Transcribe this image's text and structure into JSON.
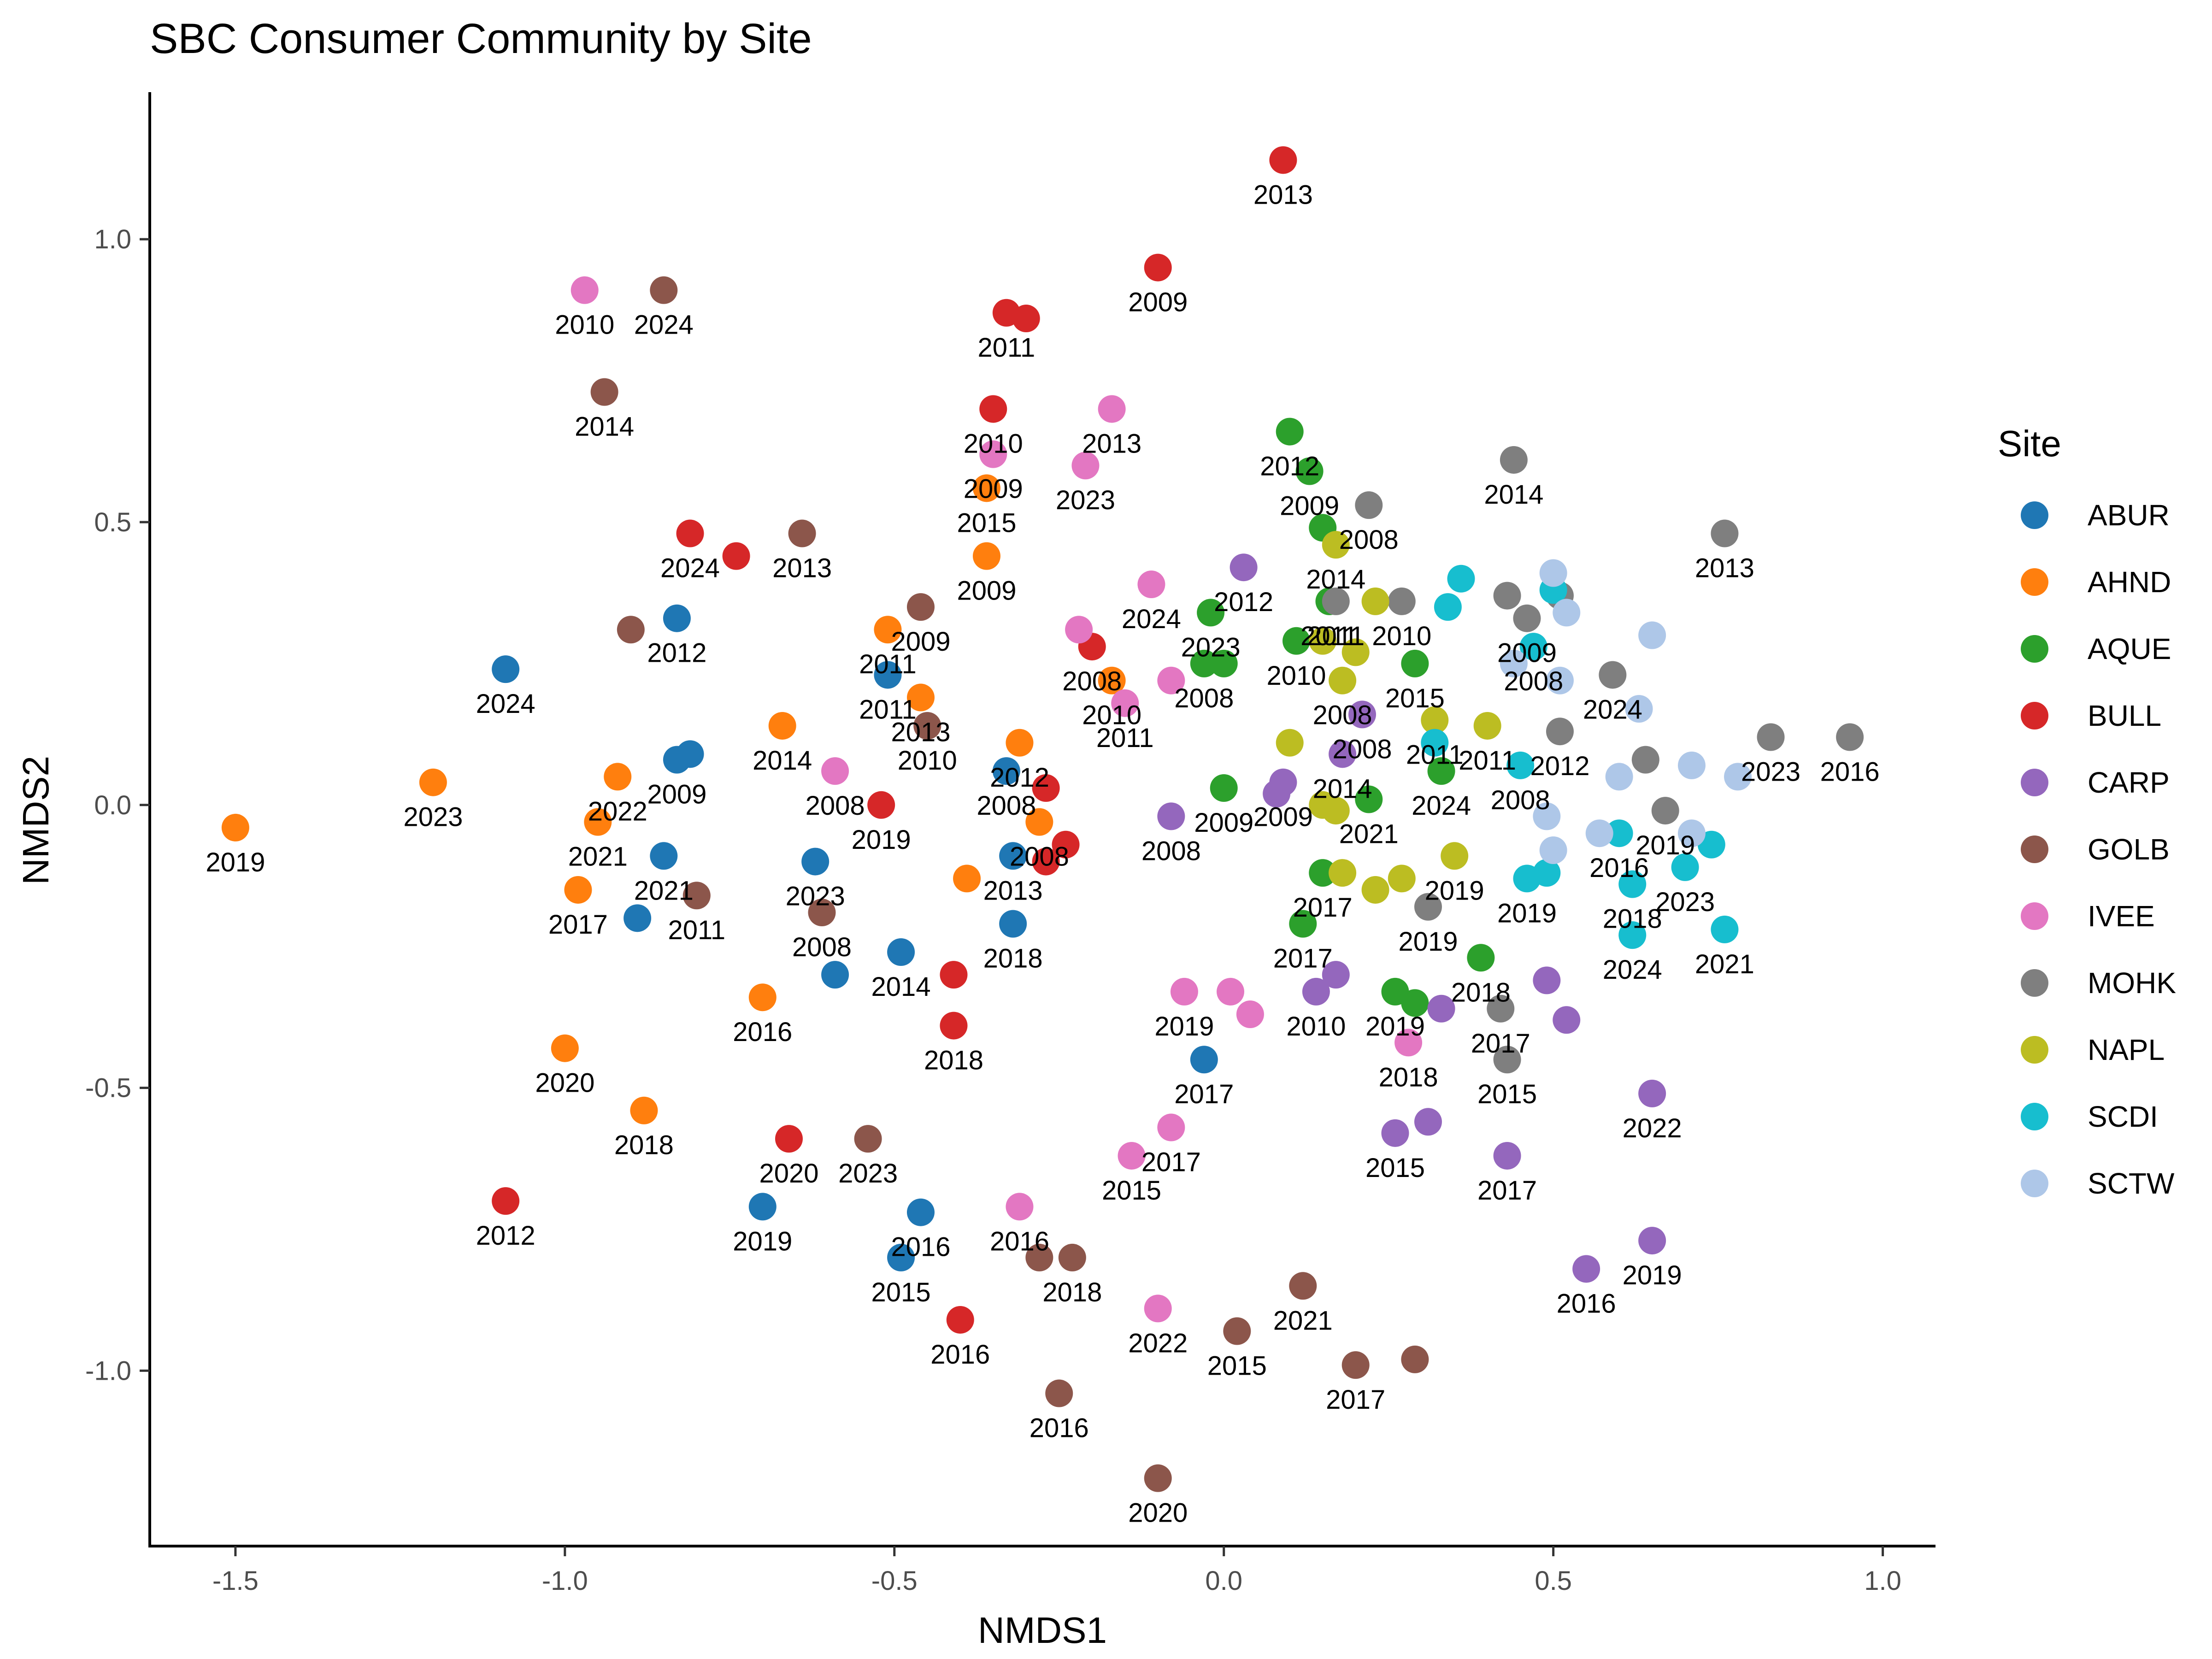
{
  "chart_data": {
    "type": "scatter",
    "title": "SBC Consumer Community by Site",
    "xlabel": "NMDS1",
    "ylabel": "NMDS2",
    "xlim": [
      -1.63,
      1.08
    ],
    "ylim": [
      -1.31,
      1.26
    ],
    "xticks": [
      -1.5,
      -1.0,
      -0.5,
      0.0,
      0.5,
      1.0
    ],
    "xtick_labels": [
      "-1.5",
      "-1.0",
      "-0.5",
      "0.0",
      "0.5",
      "1.0"
    ],
    "yticks": [
      -1.0,
      -0.5,
      0.0,
      0.5,
      1.0
    ],
    "ytick_labels": [
      "-1.0",
      "-0.5",
      "0.0",
      "0.5",
      "1.0"
    ],
    "grid": false,
    "legend": {
      "title": "Site",
      "placement": "right"
    },
    "series": [
      {
        "name": "ABUR",
        "color": "#1f77b4",
        "points": [
          {
            "x": -1.09,
            "y": 0.24,
            "label": "2024"
          },
          {
            "x": -0.83,
            "y": 0.33,
            "label": "2012"
          },
          {
            "x": -0.83,
            "y": 0.08,
            "label": "2009"
          },
          {
            "x": -0.81,
            "y": 0.09,
            "label": ""
          },
          {
            "x": -0.85,
            "y": -0.09,
            "label": "2021"
          },
          {
            "x": -0.89,
            "y": -0.2,
            "label": ""
          },
          {
            "x": -0.62,
            "y": -0.1,
            "label": "2023"
          },
          {
            "x": -0.59,
            "y": -0.3,
            "label": ""
          },
          {
            "x": -0.49,
            "y": -0.26,
            "label": "2014"
          },
          {
            "x": -0.51,
            "y": 0.23,
            "label": "2011"
          },
          {
            "x": -0.33,
            "y": 0.06,
            "label": "2008"
          },
          {
            "x": -0.32,
            "y": -0.09,
            "label": "2013"
          },
          {
            "x": -0.32,
            "y": -0.21,
            "label": "2018"
          },
          {
            "x": -0.03,
            "y": -0.45,
            "label": "2017"
          },
          {
            "x": -0.7,
            "y": -0.71,
            "label": "2019"
          },
          {
            "x": -0.46,
            "y": -0.72,
            "label": "2016"
          },
          {
            "x": -0.49,
            "y": -0.8,
            "label": "2015"
          }
        ]
      },
      {
        "name": "AHND",
        "color": "#ff7f0e",
        "points": [
          {
            "x": -1.5,
            "y": -0.04,
            "label": "2019"
          },
          {
            "x": -1.2,
            "y": 0.04,
            "label": "2023"
          },
          {
            "x": -0.92,
            "y": 0.05,
            "label": "2022"
          },
          {
            "x": -0.95,
            "y": -0.03,
            "label": "2021"
          },
          {
            "x": -0.98,
            "y": -0.15,
            "label": "2017"
          },
          {
            "x": -0.7,
            "y": -0.34,
            "label": "2016"
          },
          {
            "x": -1.0,
            "y": -0.43,
            "label": "2020"
          },
          {
            "x": -0.88,
            "y": -0.54,
            "label": "2018"
          },
          {
            "x": -0.67,
            "y": 0.14,
            "label": "2014"
          },
          {
            "x": -0.51,
            "y": 0.31,
            "label": "2011"
          },
          {
            "x": -0.46,
            "y": 0.19,
            "label": "2013"
          },
          {
            "x": -0.36,
            "y": 0.56,
            "label": "2015"
          },
          {
            "x": -0.36,
            "y": 0.44,
            "label": "2009"
          },
          {
            "x": -0.31,
            "y": 0.11,
            "label": "2012"
          },
          {
            "x": -0.28,
            "y": -0.03,
            "label": "2008"
          },
          {
            "x": -0.39,
            "y": -0.13,
            "label": ""
          },
          {
            "x": -0.17,
            "y": 0.22,
            "label": "2010"
          }
        ]
      },
      {
        "name": "AQUE",
        "color": "#2ca02c",
        "points": [
          {
            "x": 0.1,
            "y": 0.66,
            "label": "2012"
          },
          {
            "x": 0.13,
            "y": 0.59,
            "label": "2009"
          },
          {
            "x": 0.15,
            "y": 0.49,
            "label": ""
          },
          {
            "x": -0.02,
            "y": 0.34,
            "label": "2023"
          },
          {
            "x": -0.03,
            "y": 0.25,
            "label": "2008"
          },
          {
            "x": 0.0,
            "y": 0.25,
            "label": ""
          },
          {
            "x": 0.11,
            "y": 0.29,
            "label": "2010"
          },
          {
            "x": 0.16,
            "y": 0.36,
            "label": "2011"
          },
          {
            "x": 0.29,
            "y": 0.25,
            "label": "2015"
          },
          {
            "x": 0.0,
            "y": 0.03,
            "label": "2009"
          },
          {
            "x": 0.22,
            "y": 0.01,
            "label": "2021"
          },
          {
            "x": 0.33,
            "y": 0.06,
            "label": "2024"
          },
          {
            "x": 0.15,
            "y": -0.12,
            "label": "2017"
          },
          {
            "x": 0.12,
            "y": -0.21,
            "label": "2017"
          },
          {
            "x": 0.26,
            "y": -0.33,
            "label": "2019"
          },
          {
            "x": 0.29,
            "y": -0.35,
            "label": ""
          },
          {
            "x": 0.39,
            "y": -0.27,
            "label": "2018"
          }
        ]
      },
      {
        "name": "BULL",
        "color": "#d62728",
        "points": [
          {
            "x": 0.09,
            "y": 1.14,
            "label": "2013"
          },
          {
            "x": -0.1,
            "y": 0.95,
            "label": "2009"
          },
          {
            "x": -0.33,
            "y": 0.87,
            "label": "2011"
          },
          {
            "x": -0.3,
            "y": 0.86,
            "label": ""
          },
          {
            "x": -0.35,
            "y": 0.7,
            "label": "2010"
          },
          {
            "x": -0.81,
            "y": 0.48,
            "label": "2024"
          },
          {
            "x": -0.74,
            "y": 0.44,
            "label": ""
          },
          {
            "x": -0.2,
            "y": 0.28,
            "label": "2008"
          },
          {
            "x": -0.52,
            "y": 0.0,
            "label": "2019"
          },
          {
            "x": -0.27,
            "y": 0.03,
            "label": ""
          },
          {
            "x": -0.24,
            "y": -0.07,
            "label": ""
          },
          {
            "x": -0.27,
            "y": -0.1,
            "label": ""
          },
          {
            "x": -0.41,
            "y": -0.3,
            "label": ""
          },
          {
            "x": -0.41,
            "y": -0.39,
            "label": "2018"
          },
          {
            "x": -0.66,
            "y": -0.59,
            "label": "2020"
          },
          {
            "x": -1.09,
            "y": -0.7,
            "label": "2012"
          },
          {
            "x": -0.4,
            "y": -0.91,
            "label": "2016"
          }
        ]
      },
      {
        "name": "CARP",
        "color": "#9467bd",
        "points": [
          {
            "x": 0.03,
            "y": 0.42,
            "label": "2012"
          },
          {
            "x": 0.21,
            "y": 0.16,
            "label": "2008"
          },
          {
            "x": 0.18,
            "y": 0.09,
            "label": "2014"
          },
          {
            "x": 0.09,
            "y": 0.04,
            "label": "2009"
          },
          {
            "x": 0.08,
            "y": 0.02,
            "label": ""
          },
          {
            "x": -0.08,
            "y": -0.02,
            "label": "2008"
          },
          {
            "x": 0.14,
            "y": -0.33,
            "label": "2010"
          },
          {
            "x": 0.17,
            "y": -0.3,
            "label": ""
          },
          {
            "x": 0.33,
            "y": -0.36,
            "label": ""
          },
          {
            "x": 0.49,
            "y": -0.31,
            "label": ""
          },
          {
            "x": 0.52,
            "y": -0.38,
            "label": ""
          },
          {
            "x": 0.26,
            "y": -0.58,
            "label": "2015"
          },
          {
            "x": 0.31,
            "y": -0.56,
            "label": ""
          },
          {
            "x": 0.43,
            "y": -0.62,
            "label": "2017"
          },
          {
            "x": 0.65,
            "y": -0.51,
            "label": "2022"
          },
          {
            "x": 0.55,
            "y": -0.82,
            "label": "2016"
          },
          {
            "x": 0.65,
            "y": -0.77,
            "label": "2019"
          }
        ]
      },
      {
        "name": "GOLB",
        "color": "#8c564b",
        "points": [
          {
            "x": -0.85,
            "y": 0.91,
            "label": "2024"
          },
          {
            "x": -0.94,
            "y": 0.73,
            "label": "2014"
          },
          {
            "x": -0.64,
            "y": 0.48,
            "label": "2013"
          },
          {
            "x": -0.9,
            "y": 0.31,
            "label": ""
          },
          {
            "x": -0.46,
            "y": 0.35,
            "label": "2009"
          },
          {
            "x": -0.45,
            "y": 0.14,
            "label": "2010"
          },
          {
            "x": -0.8,
            "y": -0.16,
            "label": "2011"
          },
          {
            "x": -0.61,
            "y": -0.19,
            "label": "2008"
          },
          {
            "x": -0.54,
            "y": -0.59,
            "label": "2023"
          },
          {
            "x": -0.28,
            "y": -0.8,
            "label": ""
          },
          {
            "x": -0.23,
            "y": -0.8,
            "label": "2018"
          },
          {
            "x": -0.25,
            "y": -1.04,
            "label": "2016"
          },
          {
            "x": 0.02,
            "y": -0.93,
            "label": "2015"
          },
          {
            "x": 0.12,
            "y": -0.85,
            "label": "2021"
          },
          {
            "x": 0.2,
            "y": -0.99,
            "label": "2017"
          },
          {
            "x": 0.29,
            "y": -0.98,
            "label": ""
          },
          {
            "x": -0.1,
            "y": -1.19,
            "label": "2020"
          }
        ]
      },
      {
        "name": "IVEE",
        "color": "#e377c2",
        "points": [
          {
            "x": -0.97,
            "y": 0.91,
            "label": "2010"
          },
          {
            "x": -0.17,
            "y": 0.7,
            "label": "2013"
          },
          {
            "x": -0.35,
            "y": 0.62,
            "label": "2009"
          },
          {
            "x": -0.21,
            "y": 0.6,
            "label": "2023"
          },
          {
            "x": -0.11,
            "y": 0.39,
            "label": "2024"
          },
          {
            "x": -0.22,
            "y": 0.31,
            "label": ""
          },
          {
            "x": -0.08,
            "y": 0.22,
            "label": ""
          },
          {
            "x": -0.15,
            "y": 0.18,
            "label": "2011"
          },
          {
            "x": -0.59,
            "y": 0.06,
            "label": "2008"
          },
          {
            "x": -0.06,
            "y": -0.33,
            "label": "2019"
          },
          {
            "x": 0.01,
            "y": -0.33,
            "label": ""
          },
          {
            "x": 0.04,
            "y": -0.37,
            "label": ""
          },
          {
            "x": 0.28,
            "y": -0.42,
            "label": "2018"
          },
          {
            "x": -0.14,
            "y": -0.62,
            "label": "2015"
          },
          {
            "x": -0.08,
            "y": -0.57,
            "label": "2017"
          },
          {
            "x": -0.31,
            "y": -0.71,
            "label": "2016"
          },
          {
            "x": -0.1,
            "y": -0.89,
            "label": "2022"
          }
        ]
      },
      {
        "name": "MOHK",
        "color": "#7f7f7f",
        "points": [
          {
            "x": 0.44,
            "y": 0.61,
            "label": "2014"
          },
          {
            "x": 0.22,
            "y": 0.53,
            "label": "2008"
          },
          {
            "x": 0.76,
            "y": 0.48,
            "label": "2013"
          },
          {
            "x": 0.17,
            "y": 0.36,
            "label": "2011"
          },
          {
            "x": 0.27,
            "y": 0.36,
            "label": "2010"
          },
          {
            "x": 0.43,
            "y": 0.37,
            "label": ""
          },
          {
            "x": 0.46,
            "y": 0.33,
            "label": "2009"
          },
          {
            "x": 0.51,
            "y": 0.37,
            "label": ""
          },
          {
            "x": 0.59,
            "y": 0.23,
            "label": "2024"
          },
          {
            "x": 0.51,
            "y": 0.13,
            "label": "2012"
          },
          {
            "x": 0.83,
            "y": 0.12,
            "label": "2023"
          },
          {
            "x": 0.95,
            "y": 0.12,
            "label": "2016"
          },
          {
            "x": 0.64,
            "y": 0.08,
            "label": ""
          },
          {
            "x": 0.67,
            "y": -0.01,
            "label": "2019"
          },
          {
            "x": 0.31,
            "y": -0.18,
            "label": "2019"
          },
          {
            "x": 0.42,
            "y": -0.36,
            "label": "2017"
          },
          {
            "x": 0.43,
            "y": -0.45,
            "label": "2015"
          }
        ]
      },
      {
        "name": "NAPL",
        "color": "#bcbd22",
        "points": [
          {
            "x": 0.17,
            "y": 0.46,
            "label": "2014"
          },
          {
            "x": 0.23,
            "y": 0.36,
            "label": ""
          },
          {
            "x": 0.15,
            "y": 0.29,
            "label": ""
          },
          {
            "x": 0.2,
            "y": 0.27,
            "label": ""
          },
          {
            "x": 0.18,
            "y": 0.22,
            "label": "2008"
          },
          {
            "x": 0.32,
            "y": 0.15,
            "label": "2011"
          },
          {
            "x": 0.4,
            "y": 0.14,
            "label": "2011"
          },
          {
            "x": 0.1,
            "y": 0.11,
            "label": ""
          },
          {
            "x": 0.15,
            "y": 0.0,
            "label": ""
          },
          {
            "x": 0.17,
            "y": -0.01,
            "label": ""
          },
          {
            "x": 0.18,
            "y": -0.12,
            "label": ""
          },
          {
            "x": 0.23,
            "y": -0.15,
            "label": ""
          },
          {
            "x": 0.27,
            "y": -0.13,
            "label": ""
          },
          {
            "x": 0.35,
            "y": -0.09,
            "label": "2019"
          }
        ]
      },
      {
        "name": "SCDI",
        "color": "#17becf",
        "points": [
          {
            "x": 0.36,
            "y": 0.4,
            "label": ""
          },
          {
            "x": 0.34,
            "y": 0.35,
            "label": ""
          },
          {
            "x": 0.5,
            "y": 0.38,
            "label": ""
          },
          {
            "x": 0.47,
            "y": 0.28,
            "label": "2008"
          },
          {
            "x": 0.32,
            "y": 0.11,
            "label": ""
          },
          {
            "x": 0.45,
            "y": 0.07,
            "label": "2008"
          },
          {
            "x": 0.6,
            "y": -0.05,
            "label": "2016"
          },
          {
            "x": 0.46,
            "y": -0.13,
            "label": "2019"
          },
          {
            "x": 0.49,
            "y": -0.12,
            "label": ""
          },
          {
            "x": 0.62,
            "y": -0.14,
            "label": "2018"
          },
          {
            "x": 0.7,
            "y": -0.11,
            "label": "2023"
          },
          {
            "x": 0.74,
            "y": -0.07,
            "label": ""
          },
          {
            "x": 0.62,
            "y": -0.23,
            "label": "2024"
          },
          {
            "x": 0.76,
            "y": -0.22,
            "label": "2021"
          }
        ]
      },
      {
        "name": "SCTW",
        "color": "#aec7e8",
        "points": [
          {
            "x": 0.5,
            "y": 0.41,
            "label": ""
          },
          {
            "x": 0.52,
            "y": 0.34,
            "label": ""
          },
          {
            "x": 0.44,
            "y": 0.25,
            "label": ""
          },
          {
            "x": 0.51,
            "y": 0.22,
            "label": ""
          },
          {
            "x": 0.65,
            "y": 0.3,
            "label": ""
          },
          {
            "x": 0.63,
            "y": 0.17,
            "label": ""
          },
          {
            "x": 0.6,
            "y": 0.05,
            "label": ""
          },
          {
            "x": 0.71,
            "y": 0.07,
            "label": ""
          },
          {
            "x": 0.78,
            "y": 0.05,
            "label": ""
          },
          {
            "x": 0.49,
            "y": -0.02,
            "label": ""
          },
          {
            "x": 0.57,
            "y": -0.05,
            "label": ""
          },
          {
            "x": 0.5,
            "y": -0.08,
            "label": ""
          },
          {
            "x": 0.71,
            "y": -0.05,
            "label": ""
          }
        ]
      }
    ]
  }
}
